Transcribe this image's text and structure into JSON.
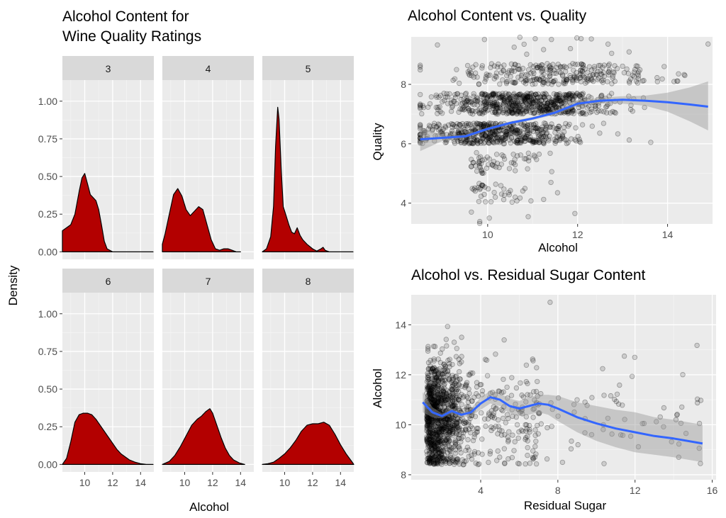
{
  "colors": {
    "panel_bg": "#ebebeb",
    "grid_major": "#ffffff",
    "strip_bg": "#d9d9d9",
    "density_fill": "#b30000",
    "smooth_line": "#3366ff",
    "ribbon": "#999999",
    "points": "#000000"
  },
  "chart_data": [
    {
      "type": "area",
      "subtype": "faceted-density",
      "title": "Alcohol Content for\nWine Quality Ratings",
      "xlabel": "Alcohol",
      "ylabel": "Density",
      "xlim": [
        8.4,
        14.95
      ],
      "ylim": [
        -0.05,
        1.14
      ],
      "xticks": [
        10,
        12,
        14
      ],
      "yticks": [
        0,
        0.25,
        0.5,
        0.75,
        1.0
      ],
      "ytick_labels": [
        "0.00",
        "0.25",
        "0.50",
        "0.75",
        "1.00"
      ],
      "facet_layout": "2x3",
      "facets": [
        {
          "label": "3",
          "x": [
            8.4,
            8.7,
            9.0,
            9.3,
            9.6,
            9.8,
            10.0,
            10.2,
            10.4,
            10.6,
            10.8,
            11.0,
            11.2,
            11.4,
            11.6,
            12.0,
            14.9
          ],
          "y": [
            0.14,
            0.16,
            0.18,
            0.25,
            0.4,
            0.49,
            0.52,
            0.45,
            0.38,
            0.36,
            0.34,
            0.28,
            0.18,
            0.07,
            0.02,
            0.0,
            0.0
          ]
        },
        {
          "label": "4",
          "x": [
            8.4,
            8.6,
            8.9,
            9.2,
            9.5,
            9.8,
            10.1,
            10.4,
            10.7,
            11.0,
            11.3,
            11.6,
            11.9,
            12.2,
            12.5,
            12.8,
            13.1,
            13.4,
            13.7,
            14.0
          ],
          "y": [
            0.05,
            0.12,
            0.25,
            0.38,
            0.42,
            0.37,
            0.28,
            0.24,
            0.27,
            0.3,
            0.28,
            0.18,
            0.08,
            0.02,
            0.01,
            0.02,
            0.02,
            0.01,
            0.0,
            0.0
          ]
        },
        {
          "label": "5",
          "x": [
            8.4,
            8.7,
            9.0,
            9.2,
            9.35,
            9.5,
            9.6,
            9.75,
            9.9,
            10.1,
            10.3,
            10.5,
            10.7,
            10.9,
            11.1,
            11.3,
            11.6,
            12.0,
            12.3,
            12.6,
            12.75,
            12.9,
            13.2,
            13.6,
            14.0,
            14.9
          ],
          "y": [
            0.0,
            0.02,
            0.1,
            0.3,
            0.7,
            0.96,
            0.88,
            0.55,
            0.3,
            0.24,
            0.18,
            0.13,
            0.12,
            0.16,
            0.11,
            0.08,
            0.05,
            0.02,
            0.005,
            0.02,
            0.03,
            0.01,
            0.0,
            0.0,
            0.0,
            0.0
          ]
        },
        {
          "label": "6",
          "x": [
            8.4,
            8.7,
            9.0,
            9.3,
            9.6,
            9.9,
            10.2,
            10.5,
            10.8,
            11.1,
            11.4,
            11.7,
            12.0,
            12.3,
            12.6,
            12.9,
            13.2,
            13.6,
            14.0,
            14.4,
            14.9
          ],
          "y": [
            0.0,
            0.04,
            0.15,
            0.28,
            0.33,
            0.34,
            0.34,
            0.33,
            0.3,
            0.26,
            0.22,
            0.18,
            0.14,
            0.1,
            0.07,
            0.05,
            0.03,
            0.015,
            0.005,
            0.0,
            0.0
          ]
        },
        {
          "label": "7",
          "x": [
            8.4,
            8.9,
            9.3,
            9.7,
            10.1,
            10.5,
            10.9,
            11.2,
            11.5,
            11.8,
            12.0,
            12.3,
            12.6,
            12.9,
            13.2,
            13.5,
            13.9,
            14.3
          ],
          "y": [
            0.0,
            0.02,
            0.06,
            0.12,
            0.19,
            0.26,
            0.3,
            0.32,
            0.35,
            0.37,
            0.34,
            0.26,
            0.18,
            0.11,
            0.06,
            0.03,
            0.01,
            0.0
          ]
        },
        {
          "label": "8",
          "x": [
            8.4,
            8.8,
            9.2,
            9.6,
            10.0,
            10.4,
            10.8,
            11.2,
            11.6,
            12.0,
            12.4,
            12.8,
            13.2,
            13.6,
            14.0,
            14.4,
            14.8,
            14.95
          ],
          "y": [
            0.0,
            0.005,
            0.015,
            0.04,
            0.07,
            0.11,
            0.16,
            0.22,
            0.26,
            0.27,
            0.27,
            0.28,
            0.26,
            0.2,
            0.13,
            0.07,
            0.02,
            0.0
          ]
        }
      ]
    },
    {
      "type": "scatter",
      "title": "Alcohol Content vs. Quality",
      "xlabel": "Alcohol",
      "ylabel": "Quality",
      "xlim": [
        8.3,
        15.0
      ],
      "ylim": [
        3.3,
        9.6
      ],
      "xticks": [
        10,
        12,
        14
      ],
      "yticks": [
        4,
        6,
        8
      ],
      "overlay": "loess smooth with confidence ribbon",
      "smooth": {
        "x": [
          8.5,
          9.0,
          9.5,
          10.0,
          10.5,
          11.0,
          11.5,
          12.0,
          12.5,
          13.0,
          13.5,
          14.0,
          14.5,
          14.9
        ],
        "y": [
          6.15,
          6.2,
          6.25,
          6.5,
          6.7,
          6.85,
          7.05,
          7.35,
          7.45,
          7.48,
          7.45,
          7.4,
          7.32,
          7.25
        ],
        "lower": [
          5.75,
          6.1,
          6.2,
          6.45,
          6.65,
          6.8,
          6.98,
          7.25,
          7.35,
          7.35,
          7.28,
          7.08,
          6.75,
          6.45
        ],
        "upper": [
          6.55,
          6.3,
          6.3,
          6.55,
          6.75,
          6.9,
          7.12,
          7.45,
          7.55,
          7.6,
          7.62,
          7.72,
          7.9,
          8.1
        ]
      }
    },
    {
      "type": "scatter",
      "title": "Alcohol vs. Residual Sugar Content",
      "xlabel": "Residual Sugar",
      "ylabel": "Alcohol",
      "xlim": [
        0.4,
        16.2
      ],
      "ylim": [
        7.8,
        15.2
      ],
      "xticks": [
        4,
        8,
        12,
        16
      ],
      "yticks": [
        8,
        10,
        12,
        14
      ],
      "overlay": "loess smooth with confidence ribbon",
      "smooth": {
        "x": [
          1.0,
          1.5,
          2.0,
          2.5,
          3.0,
          3.5,
          4.0,
          4.5,
          5.0,
          5.5,
          6.0,
          6.5,
          7.0,
          7.5,
          8.0,
          9.0,
          10.0,
          11.0,
          12.0,
          13.0,
          14.0,
          15.5
        ],
        "y": [
          10.9,
          10.5,
          10.35,
          10.55,
          10.4,
          10.5,
          10.85,
          11.1,
          11.0,
          10.75,
          10.65,
          10.75,
          10.85,
          10.8,
          10.65,
          10.3,
          10.05,
          9.85,
          9.7,
          9.55,
          9.45,
          9.25
        ],
        "lower": [
          10.5,
          10.3,
          10.25,
          10.45,
          10.3,
          10.35,
          10.6,
          10.85,
          10.75,
          10.45,
          10.35,
          10.4,
          10.5,
          10.4,
          10.15,
          9.7,
          9.35,
          9.1,
          8.9,
          8.8,
          8.7,
          8.5
        ],
        "upper": [
          11.3,
          10.7,
          10.45,
          10.65,
          10.5,
          10.65,
          11.1,
          11.35,
          11.25,
          11.05,
          10.95,
          11.1,
          11.2,
          11.2,
          11.15,
          10.9,
          10.75,
          10.6,
          10.5,
          10.3,
          10.2,
          10.0
        ]
      }
    }
  ]
}
